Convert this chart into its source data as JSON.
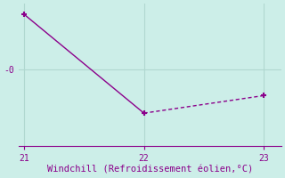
{
  "x": [
    21,
    22,
    23
  ],
  "y": [
    2.5,
    -2.0,
    -1.2
  ],
  "line_color": "#8B008B",
  "marker": "+",
  "marker_size": 5,
  "marker_linewidth": 1.5,
  "background_color": "#cceee8",
  "xlabel": "Windchill (Refroidissement éolien,°C)",
  "xlabel_fontsize": 7.5,
  "xticks": [
    21,
    22,
    23
  ],
  "ytick_label": "-0",
  "ytick_value": 0.0,
  "ylim": [
    -3.5,
    3.0
  ],
  "xlim": [
    21.0,
    23.0
  ],
  "grid_color": "#b0d8d0",
  "axis_color": "#8B008B",
  "tick_color": "#8B008B",
  "label_color": "#8B008B",
  "linewidth_solid": 1.0,
  "linewidth_dashed": 1.0
}
